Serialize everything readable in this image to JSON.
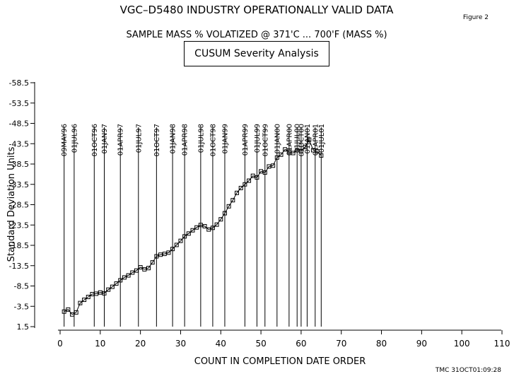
{
  "chart_data": {
    "type": "line",
    "title": "VGC–D5480   INDUSTRY OPERATIONALLY VALID DATA",
    "subtitle": "SAMPLE MASS % VOLATIZED @ 371'C ... 700'F (MASS %)",
    "boxed_title": "CUSUM Severity Analysis",
    "figure_label": "Figure 2",
    "footer": "TMC 31OCT01:09:28",
    "xlabel": "COUNT IN COMPLETION DATE ORDER",
    "ylabel": "Standard Deviation Units",
    "xlim": [
      0,
      110
    ],
    "xticks": [
      0,
      10,
      20,
      30,
      40,
      50,
      60,
      70,
      80,
      90,
      100,
      110
    ],
    "xtick_labels": [
      "0",
      "10",
      "20",
      "30",
      "40",
      "50",
      "60",
      "70",
      "80",
      "90",
      "100",
      "110"
    ],
    "ylim": [
      1.5,
      -58.5
    ],
    "yticks": [
      -58.5,
      -53.5,
      -48.5,
      -43.5,
      -38.5,
      -33.5,
      -28.5,
      -23.5,
      -18.5,
      -13.5,
      -8.5,
      -3.5,
      1.5
    ],
    "ytick_labels": [
      "-58.5",
      "-53.5",
      "-48.5",
      "-43.5",
      "-38.5",
      "-33.5",
      "-28.5",
      "-23.5",
      "-18.5",
      "-13.5",
      "-8.5",
      "-3.5",
      "1.5"
    ],
    "grid": false,
    "date_markers": [
      {
        "x": 1,
        "label": "09MAY96"
      },
      {
        "x": 3.5,
        "label": "01JUL96"
      },
      {
        "x": 8.5,
        "label": "01OCT96"
      },
      {
        "x": 11,
        "label": "01JAN97"
      },
      {
        "x": 15,
        "label": "01APR97"
      },
      {
        "x": 19.5,
        "label": "01JUL97"
      },
      {
        "x": 24,
        "label": "01OCT97"
      },
      {
        "x": 28,
        "label": "01JAN98"
      },
      {
        "x": 31,
        "label": "01APR98"
      },
      {
        "x": 35,
        "label": "01JUL98"
      },
      {
        "x": 38,
        "label": "01OCT98"
      },
      {
        "x": 41,
        "label": "01JAN99"
      },
      {
        "x": 46,
        "label": "01APR99"
      },
      {
        "x": 49,
        "label": "01JUL99"
      },
      {
        "x": 51,
        "label": "01OCT99"
      },
      {
        "x": 54,
        "label": "01JAN00"
      },
      {
        "x": 57,
        "label": "01APR00"
      },
      {
        "x": 59,
        "label": "01JUL00"
      },
      {
        "x": 60,
        "label": "01OCT00"
      },
      {
        "x": 61.5,
        "label": "01JAN01"
      },
      {
        "x": 63.5,
        "label": "01APR01"
      },
      {
        "x": 65,
        "label": "01JUL01"
      }
    ],
    "series": [
      {
        "x": [
          1,
          2,
          3,
          4,
          5,
          6,
          7,
          8,
          9,
          10,
          11,
          12,
          13,
          14,
          15,
          16,
          17,
          18,
          19,
          20,
          21,
          22,
          23,
          24,
          25,
          26,
          27,
          28,
          29,
          30,
          31,
          32,
          33,
          34,
          35,
          36,
          37,
          38,
          39,
          40,
          41,
          42,
          43,
          44,
          45,
          46,
          47,
          48,
          49,
          50,
          51,
          52,
          53,
          54,
          55,
          56,
          57,
          58,
          59,
          60,
          61,
          62,
          63,
          64,
          65
        ],
        "y": [
          -2.2,
          -2.7,
          -1.5,
          -2.0,
          -4.3,
          -5.1,
          -5.8,
          -6.5,
          -6.6,
          -6.9,
          -6.7,
          -7.6,
          -8.3,
          -9.1,
          -9.9,
          -10.6,
          -11.1,
          -11.8,
          -12.3,
          -13.1,
          -12.6,
          -12.9,
          -14.3,
          -15.8,
          -16.2,
          -16.4,
          -16.7,
          -17.6,
          -18.6,
          -19.6,
          -20.7,
          -21.4,
          -22.2,
          -22.9,
          -23.5,
          -23.2,
          -22.4,
          -22.8,
          -23.6,
          -24.9,
          -26.4,
          -28.1,
          -29.6,
          -31.4,
          -32.6,
          -33.5,
          -34.4,
          -35.6,
          -35.2,
          -36.7,
          -36.4,
          -37.9,
          -38.1,
          -40.1,
          -40.8,
          -42.1,
          -41.5,
          -41.2,
          -41.9,
          -41.7,
          -42.7,
          -44.5,
          -41.9,
          -41.6,
          -40.6
        ]
      }
    ]
  }
}
